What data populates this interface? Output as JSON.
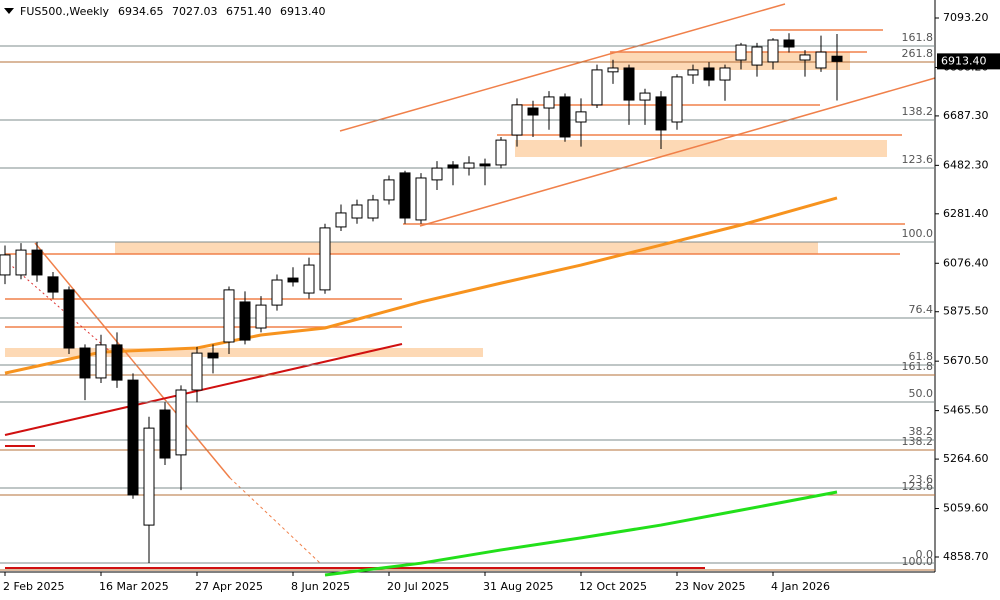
{
  "chart_data": {
    "type": "candlestick",
    "title": "FUS500.,Weekly",
    "header_labels": [
      "6934.65",
      "7027.03",
      "6751.40",
      "6913.40"
    ],
    "price_label": "6913.40",
    "categories": [
      "2 Feb 2025",
      null,
      null,
      null,
      null,
      null,
      "16 Mar 2025",
      null,
      null,
      null,
      null,
      null,
      "27 Apr 2025",
      null,
      null,
      null,
      null,
      null,
      "8 Jun 2025",
      null,
      null,
      null,
      null,
      null,
      "20 Jul 2025",
      null,
      null,
      null,
      null,
      null,
      "31 Aug 2025",
      null,
      null,
      null,
      null,
      null,
      "12 Oct 2025",
      null,
      null,
      null,
      null,
      null,
      "23 Nov 2025",
      null,
      null,
      null,
      null,
      null,
      "4 Jan 2026",
      null,
      null,
      null,
      null
    ],
    "open": [
      6028,
      6028,
      6131,
      6020,
      5966,
      5725,
      5601,
      5738,
      5592,
      4991,
      5468,
      5282,
      5551,
      5704,
      5750,
      5916,
      5808,
      5903,
      6015,
      5953,
      5966,
      6227,
      6264,
      6264,
      6339,
      6451,
      6256,
      6422,
      6484,
      6471,
      6488,
      6484,
      6608,
      6720,
      6720,
      6766,
      6662,
      6733,
      6870,
      6886,
      6753,
      6766,
      6662,
      6857,
      6886,
      6836,
      6919,
      6898,
      6911,
      7002,
      6919,
      6886,
      6934.65
    ],
    "high": [
      6150,
      6160,
      6165,
      6040,
      5980,
      5740,
      5780,
      5790,
      5620,
      5440,
      5500,
      5570,
      5730,
      5740,
      5980,
      5960,
      5940,
      6030,
      6060,
      6100,
      6240,
      6320,
      6340,
      6360,
      6440,
      6460,
      6450,
      6500,
      6500,
      6520,
      6510,
      6600,
      6760,
      6750,
      6790,
      6780,
      6760,
      6900,
      6920,
      6900,
      6800,
      6790,
      6860,
      6900,
      6910,
      6900,
      6990,
      6990,
      7010,
      7030,
      6960,
      7020,
      7027.03
    ],
    "low": [
      5990,
      6010,
      6000,
      5930,
      5700,
      5509,
      5580,
      5560,
      5100,
      4834,
      5240,
      5136,
      5500,
      5620,
      5700,
      5740,
      5790,
      5880,
      5980,
      5930,
      5950,
      6210,
      6240,
      6250,
      6320,
      6240,
      6240,
      6380,
      6400,
      6440,
      6400,
      6470,
      6560,
      6600,
      6630,
      6580,
      6560,
      6720,
      6820,
      6650,
      6650,
      6550,
      6630,
      6820,
      6810,
      6750,
      6880,
      6850,
      6880,
      6950,
      6850,
      6870,
      6751.4
    ],
    "close": [
      6111,
      6131,
      6028,
      5957,
      5725,
      5601,
      5738,
      5592,
      5116,
      5393,
      5269,
      5551,
      5704,
      5684,
      5966,
      5758,
      5903,
      6007,
      5999,
      6069,
      6223,
      6285,
      6318,
      6339,
      6422,
      6264,
      6430,
      6471,
      6471,
      6492,
      6480,
      6587,
      6733,
      6691,
      6766,
      6600,
      6704,
      6878,
      6886,
      6753,
      6782,
      6629,
      6849,
      6878,
      6836,
      6886,
      6981,
      6973,
      7002,
      6973,
      6940,
      6952,
      6913.4
    ],
    "up_color": "#ffffff",
    "down_color": "#000000",
    "lines": [
      {
        "color": "#f7931e",
        "x": [
          0,
          6,
          12,
          16,
          20,
          26,
          31,
          36,
          41,
          46,
          52
        ],
        "values": [
          5621,
          5708,
          5725,
          5779,
          5808,
          5916,
          5994,
          6069,
          6152,
          6235,
          6347
        ]
      },
      {
        "color": "#22e01a",
        "x": [
          20,
          26,
          31,
          36,
          41,
          46,
          52
        ],
        "values": [
          4784,
          4833,
          4888,
          4938,
          4991,
          5053,
          5128
        ]
      }
    ],
    "levels": [
      {
        "label": "161.8",
        "value": 6977.1,
        "color": "#7f8c8d"
      },
      {
        "label": "261.8",
        "value": 6910.8,
        "color": "#b5703a"
      },
      {
        "label": "138.2",
        "value": 6670.3,
        "color": "#7f8c8d"
      },
      {
        "label": "123.6",
        "value": 6471.3,
        "color": "#7f8c8d"
      },
      {
        "label": "100.0",
        "value": 6164.5,
        "color": "#7f8c8d"
      },
      {
        "label": "76.4",
        "value": 5849.5,
        "color": "#7f8c8d"
      },
      {
        "label": "61.8",
        "value": 5654.6,
        "color": "#7f8c8d"
      },
      {
        "label": "161.8",
        "value": 5613.2,
        "color": "#b5703a"
      },
      {
        "label": "50.0",
        "value": 5501.2,
        "color": "#7f8c8d"
      },
      {
        "label": "38.2",
        "value": 5343.7,
        "color": "#7f8c8d"
      },
      {
        "label": "138.2",
        "value": 5302.3,
        "color": "#b5703a"
      },
      {
        "label": "23.6",
        "value": 5144.7,
        "color": "#7f8c8d"
      },
      {
        "label": "123.6",
        "value": 5115.6,
        "color": "#b5703a"
      },
      {
        "label": "0.0",
        "value": 4833.7,
        "color": "#7f8c8d"
      },
      {
        "label": "100.0",
        "value": 4804.7,
        "color": "#b5703a"
      }
    ],
    "ylim": [
      4796.5,
      7167.8
    ],
    "yticks": [
      {
        "value": 7093.2,
        "label": "7093.20"
      },
      {
        "value": 6888.2,
        "label": "6888.20"
      },
      {
        "value": 6687.3,
        "label": "6687.30"
      },
      {
        "value": 6482.3,
        "label": "6482.30"
      },
      {
        "value": 6281.4,
        "label": "6281.40"
      },
      {
        "value": 6076.4,
        "label": "6076.40"
      },
      {
        "value": 5875.5,
        "label": "5875.50"
      },
      {
        "value": 5670.5,
        "label": "5670.50"
      },
      {
        "value": 5465.5,
        "label": "5465.50"
      },
      {
        "value": 5264.6,
        "label": "5264.60"
      },
      {
        "value": 5059.6,
        "label": "5059.60"
      },
      {
        "value": 4858.7,
        "label": "4858.70"
      }
    ]
  }
}
